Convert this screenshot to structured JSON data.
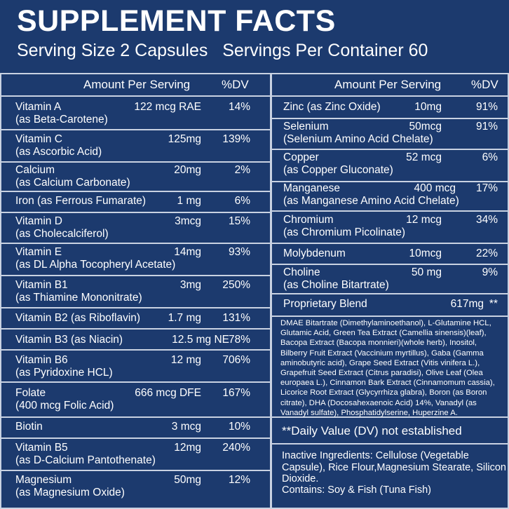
{
  "header": {
    "title": "SUPPLEMENT FACTS",
    "serving": "Serving Size 2 Capsules   Servings Per Container 60"
  },
  "columns": {
    "amount": "Amount Per Serving",
    "dv": "%DV"
  },
  "left_rows": [
    {
      "name": "Vitamin A",
      "sub": "(as Beta-Carotene)",
      "amount": "122 mcg RAE",
      "dv": "14%"
    },
    {
      "name": "Vitamin C",
      "sub": "(as Ascorbic Acid)",
      "amount": "125mg",
      "dv": "139%"
    },
    {
      "name": "Calcium",
      "sub": "(as Calcium Carbonate)",
      "amount": "20mg",
      "dv": "2%"
    },
    {
      "name": "Iron (as Ferrous Fumarate)",
      "sub": "",
      "amount": "1 mg",
      "dv": "6%"
    },
    {
      "name": "Vitamin D",
      "sub": "(as Cholecalciferol)",
      "amount": "3mcg",
      "dv": "15%"
    },
    {
      "name": "Vitamin E",
      "sub": "(as DL Alpha Tocopheryl Acetate)",
      "amount": "14mg",
      "dv": "93%"
    },
    {
      "name": "Vitamin B1",
      "sub": "(as Thiamine Mononitrate)",
      "amount": "3mg",
      "dv": "250%"
    },
    {
      "name": "Vitamin B2 (as Riboflavin)",
      "sub": "",
      "amount": "1.7 mg",
      "dv": "131%"
    },
    {
      "name": "Vitamin B3 (as Niacin)",
      "sub": "",
      "amount": "12.5 mg NE",
      "dv": "78%"
    },
    {
      "name": "Vitamin B6",
      "sub": "(as Pyridoxine HCL)",
      "amount": "12 mg",
      "dv": "706%"
    },
    {
      "name": "Folate",
      "sub": "(400 mcg Folic Acid)",
      "amount": "666 mcg DFE",
      "dv": "167%"
    },
    {
      "name": "Biotin",
      "sub": "",
      "amount": "3 mcg",
      "dv": "10%"
    },
    {
      "name": "Vitamin B5",
      "sub": "(as D-Calcium Pantothenate)",
      "amount": "12mg",
      "dv": "240%"
    },
    {
      "name": "Magnesium",
      "sub": "(as Magnesium Oxide)",
      "amount": "50mg",
      "dv": "12%"
    }
  ],
  "right_rows": [
    {
      "name": "Zinc (as Zinc Oxide)",
      "sub": "",
      "amount": "10mg",
      "dv": "91%"
    },
    {
      "name": "Selenium",
      "sub": "(Selenium Amino Acid Chelate)",
      "amount": "50mcg",
      "dv": "91%"
    },
    {
      "name": "Copper",
      "sub": "(as Copper Gluconate)",
      "amount": "52 mcg",
      "dv": "6%"
    },
    {
      "name": "Manganese",
      "sub": "(as Manganese Amino Acid Chelate)",
      "amount": "400 mcg",
      "dv": "17%"
    },
    {
      "name": "Chromium",
      "sub": "(as Chromium Picolinate)",
      "amount": "12 mcg",
      "dv": "34%"
    },
    {
      "name": "Molybdenum",
      "sub": "",
      "amount": "10mcg",
      "dv": "22%"
    },
    {
      "name": "Choline",
      "sub": "(as Choline Bitartrate)",
      "amount": "50 mg",
      "dv": "9%"
    },
    {
      "name": "Proprietary Blend",
      "sub": "",
      "amount": "617mg",
      "dv": "**"
    }
  ],
  "blend_ingredients": "DMAE Bitartrate (Dimethylaminoethanol), L-Glutamine HCL, Glutamic Acid, Green Tea Extract (Camellia sinensis)(leaf), Bacopa Extract (Bacopa monnieri)(whole herb), Inositol, Bilberry Fruit Extract (Vaccinium myrtillus), Gaba (Gamma aminobutyric acid), Grape Seed Extract (Vitis vinifera L.), Grapefruit Seed Extract (Citrus paradisi), Olive Leaf (Olea europaea L.), Cinnamon Bark Extract (Cinnamomum cassia), Licorice Root Extract (Glycyrrhiza glabra), Boron (as Boron citrate), DHA (Docosahexaenoic Acid) 14%, Vanadyl (as Vanadyl sulfate), Phosphatidylserine, Huperzine A.",
  "dv_note": "**Daily Value (DV) not established",
  "inactive": "Inactive Ingredients: Cellulose (Vegetable Capsule), Rice Flour,Magnesium Stearate, Silicon Dioxide.",
  "contains": "Contains: Soy & Fish (Tuna Fish)",
  "colors": {
    "background": "#1c3a6e",
    "rule": "#c9d2e2",
    "text": "#ffffff"
  }
}
